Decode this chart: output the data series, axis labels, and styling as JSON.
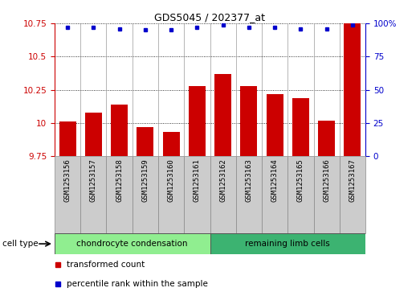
{
  "title": "GDS5045 / 202377_at",
  "samples": [
    "GSM1253156",
    "GSM1253157",
    "GSM1253158",
    "GSM1253159",
    "GSM1253160",
    "GSM1253161",
    "GSM1253162",
    "GSM1253163",
    "GSM1253164",
    "GSM1253165",
    "GSM1253166",
    "GSM1253167"
  ],
  "bar_values": [
    10.01,
    10.08,
    10.14,
    9.97,
    9.93,
    10.28,
    10.37,
    10.28,
    10.22,
    10.19,
    10.02,
    10.75
  ],
  "percentile_values": [
    97,
    97,
    96,
    95,
    95,
    97,
    99,
    97,
    97,
    96,
    96,
    99
  ],
  "bar_color": "#cc0000",
  "dot_color": "#0000cc",
  "ylim_left": [
    9.75,
    10.75
  ],
  "ylim_right": [
    0,
    100
  ],
  "yticks_left": [
    9.75,
    10.0,
    10.25,
    10.5,
    10.75
  ],
  "ytick_labels_left": [
    "9.75",
    "10",
    "10.25",
    "10.5",
    "10.75"
  ],
  "yticks_right": [
    0,
    25,
    50,
    75,
    100
  ],
  "ytick_labels_right": [
    "0",
    "25",
    "50",
    "75",
    "100%"
  ],
  "group1_label": "chondrocyte condensation",
  "group2_label": "remaining limb cells",
  "cell_type_label": "cell type",
  "group1_indices": [
    0,
    1,
    2,
    3,
    4,
    5
  ],
  "group2_indices": [
    6,
    7,
    8,
    9,
    10,
    11
  ],
  "legend_bar_label": "transformed count",
  "legend_dot_label": "percentile rank within the sample",
  "bar_bottom": 9.75,
  "background_color": "#ffffff",
  "plot_bg_color": "#ffffff",
  "group_bg_color": "#cccccc",
  "group1_fill_color": "#90ee90",
  "group2_fill_color": "#3cb371"
}
